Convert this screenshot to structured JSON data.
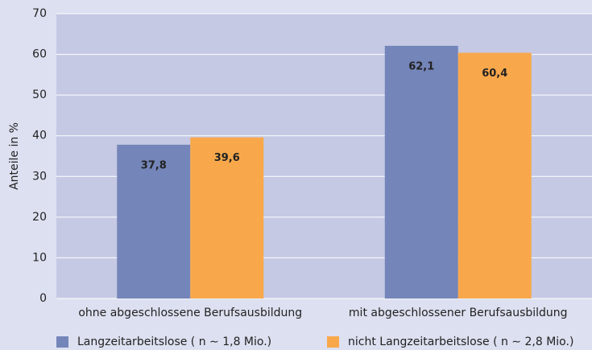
{
  "chart_data": {
    "type": "bar",
    "y_label": "Anteile in %",
    "categories": [
      "ohne abgeschlossene Berufsausbildung",
      "mit abgeschlossener Berufsausbildung"
    ],
    "series": [
      {
        "name": "Langzeitarbeitslose ( n ∼ 1,8 Mio.)",
        "color": "#7485b9",
        "values": [
          37.8,
          62.1
        ],
        "value_labels": [
          "37,8",
          "62,1"
        ]
      },
      {
        "name": "nicht Langzeitarbeitslose ( n ∼ 2,8 Mio.)",
        "color": "#f8a84b",
        "values": [
          39.6,
          60.4
        ],
        "value_labels": [
          "39,6",
          "60,4"
        ]
      }
    ],
    "ylim": [
      0,
      70
    ],
    "yticks": [
      0,
      10,
      20,
      30,
      40,
      50,
      60,
      70
    ],
    "grid": true
  }
}
